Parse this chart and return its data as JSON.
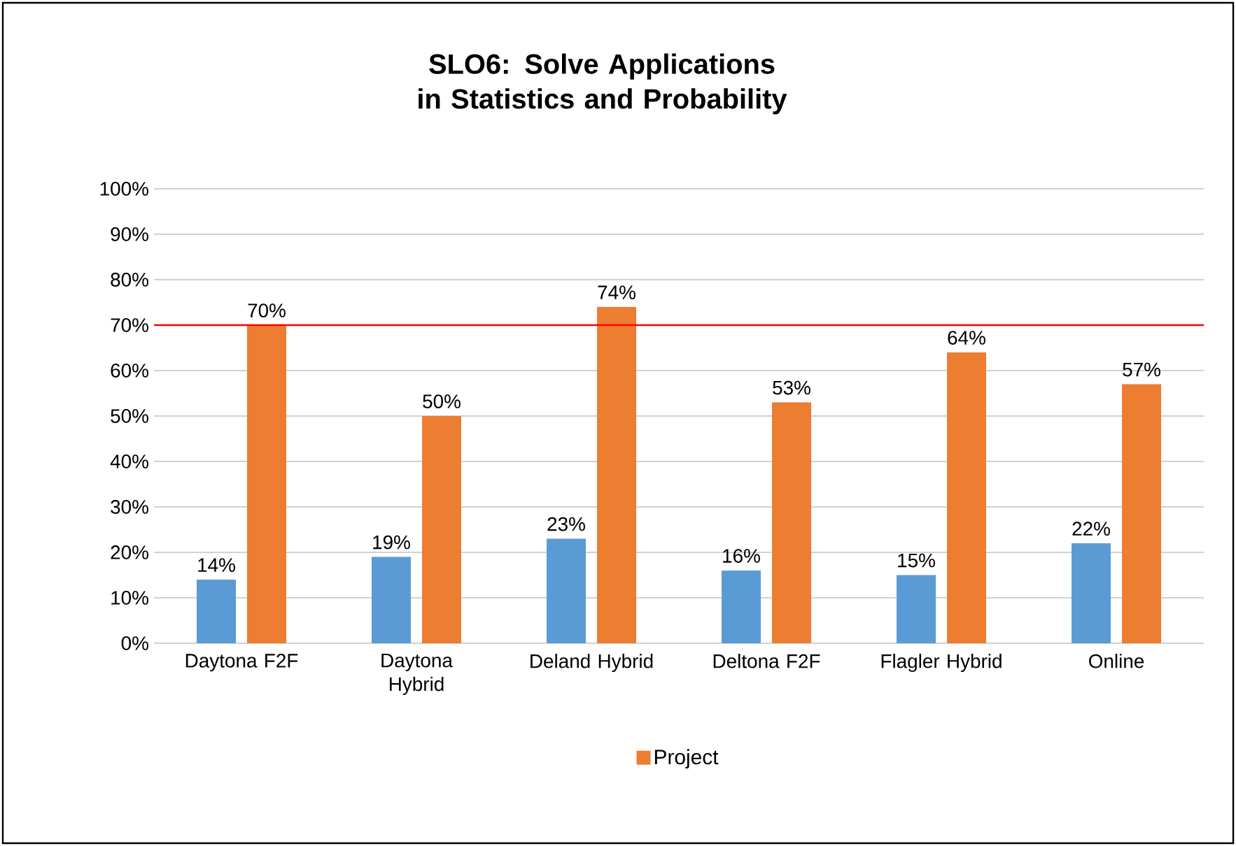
{
  "chart_data": {
    "type": "bar",
    "title": "**SLO6**: Solve Applications in Statistics and Probability",
    "categories": [
      "Daytona F2F",
      "Daytona Hybrid",
      "Deland Hybrid",
      "Deltona F2F",
      "Flagler Hybrid",
      "Online"
    ],
    "series": [
      {
        "color": "#5b9bd5",
        "values": [
          14,
          19,
          23,
          16,
          15,
          22
        ],
        "value_labels": [
          "14%",
          "19%",
          "23%",
          "16%",
          "15%",
          "22%"
        ]
      },
      {
        "name": "Project",
        "color": "#ed7d31",
        "values": [
          70,
          50,
          74,
          53,
          64,
          57
        ],
        "value_labels": [
          "70%",
          "50%",
          "74%",
          "53%",
          "64%",
          "57%"
        ]
      }
    ],
    "ylim": [
      0,
      100
    ],
    "yticks": [
      {
        "value": 0,
        "label": "0%"
      },
      {
        "value": 10,
        "label": "10%"
      },
      {
        "value": 20,
        "label": "20%"
      },
      {
        "value": 30,
        "label": "30%"
      },
      {
        "value": 40,
        "label": "40%"
      },
      {
        "value": 50,
        "label": "50%"
      },
      {
        "value": 60,
        "label": "60%"
      },
      {
        "value": 70,
        "label": "70%"
      },
      {
        "value": 80,
        "label": "80%"
      },
      {
        "value": 90,
        "label": "90%"
      },
      {
        "value": 100,
        "label": "100%"
      }
    ],
    "ref_lines": [
      {
        "axis": "y",
        "value": 70,
        "color": "#ff0000"
      }
    ],
    "grid": "y",
    "legend": "bottom"
  }
}
